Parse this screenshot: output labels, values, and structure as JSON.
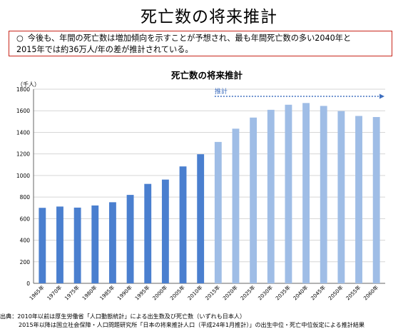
{
  "page": {
    "title": "死亡数の将来推計",
    "summary_bullet": "○",
    "summary_line1": "今後も、年間の死亡数は増加傾向を示すことが予想され、最も年間死亡数の多い2040年と",
    "summary_line2": "2015年では約36万人/年の差が推計されている。",
    "source_line1": "出典：2010年以前は厚生労働省「人口動態統計」による出生数及び死亡数（いずれも日本人）",
    "source_line2": "2015年以降は国立社会保障・人口問題研究所「日本の将来推計人口（平成24年1月推計）」の出生中位・死亡中位仮定による推計結果"
  },
  "colors": {
    "actual_bar": "#4a7fcf",
    "projected_bar": "#9fbde6",
    "projection_arrow": "#3f6fbf",
    "grid": "#d6d6d6",
    "axis": "#666666",
    "box_border": "#c8261b"
  },
  "chart_data": {
    "type": "bar",
    "title": "死亡数の将来推計",
    "ylabel": "（千人）",
    "xlabel": "",
    "ylim": [
      0,
      1800
    ],
    "yticks": [
      0,
      200,
      400,
      600,
      800,
      1000,
      1200,
      1400,
      1600,
      1800
    ],
    "grid": true,
    "categories": [
      "1965年",
      "1970年",
      "1975年",
      "1980年",
      "1985年",
      "1990年",
      "1995年",
      "2000年",
      "2005年",
      "2010年",
      "2015年",
      "2020年",
      "2025年",
      "2030年",
      "2035年",
      "2040年",
      "2045年",
      "2050年",
      "2055年",
      "2060年"
    ],
    "series": [
      {
        "values": [
          700,
          712,
          702,
          722,
          752,
          820,
          922,
          962,
          1084,
          1197,
          1311,
          1434,
          1537,
          1609,
          1656,
          1672,
          1645,
          1597,
          1552,
          1542
        ],
        "projected_from_index": 10
      }
    ],
    "annotation": "推計"
  }
}
